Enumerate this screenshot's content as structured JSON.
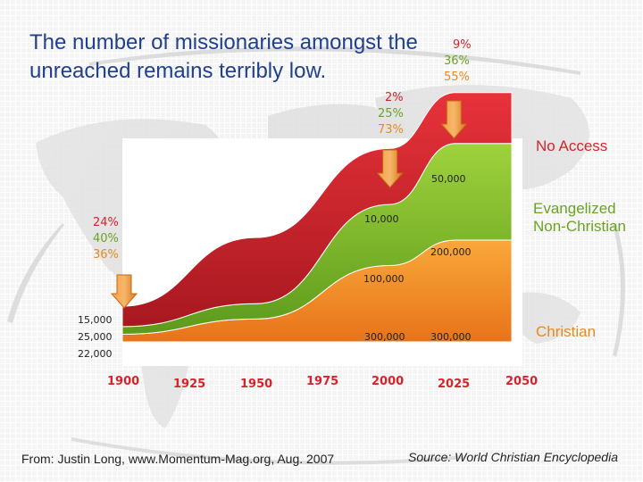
{
  "title": "The number of missionaries amongst the unreached remains terribly low.",
  "colors": {
    "no_access": "#c8222b",
    "evangelized": "#7bb52a",
    "christian": "#f08a1c",
    "title_blue": "#1f3f8f"
  },
  "chart_data": {
    "type": "area",
    "stacked": true,
    "x": [
      1900,
      1950,
      2000,
      2025
    ],
    "series": [
      {
        "name": "Christian",
        "values": [
          1.5,
          4.5,
          15,
          20
        ]
      },
      {
        "name": "Evangelized Non-Christian",
        "values": [
          1.5,
          3,
          12,
          19
        ]
      },
      {
        "name": "No Access",
        "values": [
          4,
          13,
          11,
          10
        ]
      }
    ],
    "xlim": [
      1900,
      2050
    ],
    "x_ticks": [
      "1900",
      "1925",
      "1950",
      "1975",
      "2000",
      "2025",
      "2050"
    ],
    "legend": [
      "No Access",
      "Evangelized Non-Christian",
      "Christian"
    ],
    "annotations": {
      "y1900": {
        "pcts": [
          "24%",
          "40%",
          "36%"
        ],
        "counts": [
          "15,000",
          "25,000",
          "22,000"
        ]
      },
      "y2000": {
        "pcts": [
          "2%",
          "25%",
          "73%"
        ],
        "counts": [
          "10,000",
          "100,000",
          "300,000"
        ]
      },
      "y2025": {
        "pcts": [
          "9%",
          "36%",
          "55%"
        ],
        "counts": [
          "50,000",
          "200,000",
          "300,000"
        ]
      }
    }
  },
  "footer": {
    "source_left": "From:  Justin Long, www.Momentum-Mag.org, Aug. 2007",
    "source_right": "Source: World Christian Encyclopedia"
  }
}
